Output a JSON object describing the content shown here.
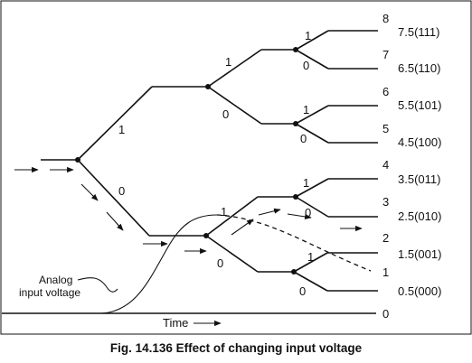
{
  "branch_bits": {
    "upper": "1",
    "lower": "0"
  },
  "outputs": [
    {
      "level": "8",
      "value": "7.5(111)"
    },
    {
      "level": "7",
      "value": "6.5(110)"
    },
    {
      "level": "6",
      "value": "5.5(101)"
    },
    {
      "level": "5",
      "value": "4.5(100)"
    },
    {
      "level": "4",
      "value": "3.5(011)"
    },
    {
      "level": "3",
      "value": "2.5(010)"
    },
    {
      "level": "2",
      "value": "1.5(001)"
    },
    {
      "level": "1",
      "value": "0.5(000)"
    }
  ],
  "zero_level": "0",
  "analog_label": {
    "line1": "Analog",
    "line2": "input voltage"
  },
  "time_label": "Time",
  "caption": "Fig. 14.136 Effect of changing input voltage"
}
